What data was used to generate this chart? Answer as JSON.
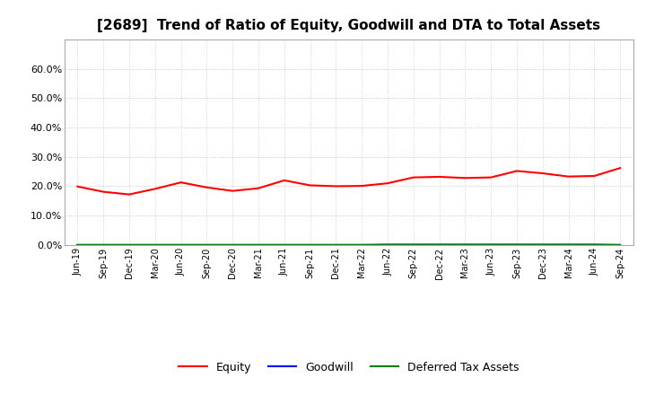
{
  "title": "[2689]  Trend of Ratio of Equity, Goodwill and DTA to Total Assets",
  "x_labels": [
    "Jun-19",
    "Sep-19",
    "Dec-19",
    "Mar-20",
    "Jun-20",
    "Sep-20",
    "Dec-20",
    "Mar-21",
    "Jun-21",
    "Sep-21",
    "Dec-21",
    "Mar-22",
    "Jun-22",
    "Sep-22",
    "Dec-22",
    "Mar-23",
    "Jun-23",
    "Sep-23",
    "Dec-23",
    "Mar-24",
    "Jun-24",
    "Sep-24"
  ],
  "equity": [
    0.199,
    0.181,
    0.172,
    0.191,
    0.213,
    0.196,
    0.184,
    0.193,
    0.22,
    0.203,
    0.2,
    0.201,
    0.21,
    0.23,
    0.232,
    0.228,
    0.23,
    0.252,
    0.244,
    0.233,
    0.235,
    0.262
  ],
  "goodwill": [
    0.0,
    0.0,
    0.0,
    0.0,
    0.0,
    0.0,
    0.0,
    0.0,
    0.0,
    0.0,
    0.0,
    0.0,
    0.001,
    0.001,
    0.001,
    0.001,
    0.001,
    0.001,
    0.001,
    0.001,
    0.001,
    0.0
  ],
  "dta": [
    0.0,
    0.0,
    0.0,
    0.0,
    0.0,
    0.0,
    0.0,
    0.0,
    0.0,
    0.0,
    0.0,
    0.0,
    0.0,
    0.0,
    0.0,
    0.0,
    0.0,
    0.0,
    0.0,
    0.0,
    0.0,
    0.0
  ],
  "equity_color": "#FF0000",
  "goodwill_color": "#0000FF",
  "dta_color": "#008000",
  "ylim": [
    0.0,
    0.7
  ],
  "yticks": [
    0.0,
    0.1,
    0.2,
    0.3,
    0.4,
    0.5,
    0.6
  ],
  "background_color": "#FFFFFF",
  "plot_bg_color": "#FFFFFF",
  "grid_color": "#BBBBBB",
  "title_fontsize": 11,
  "legend_labels": [
    "Equity",
    "Goodwill",
    "Deferred Tax Assets"
  ]
}
